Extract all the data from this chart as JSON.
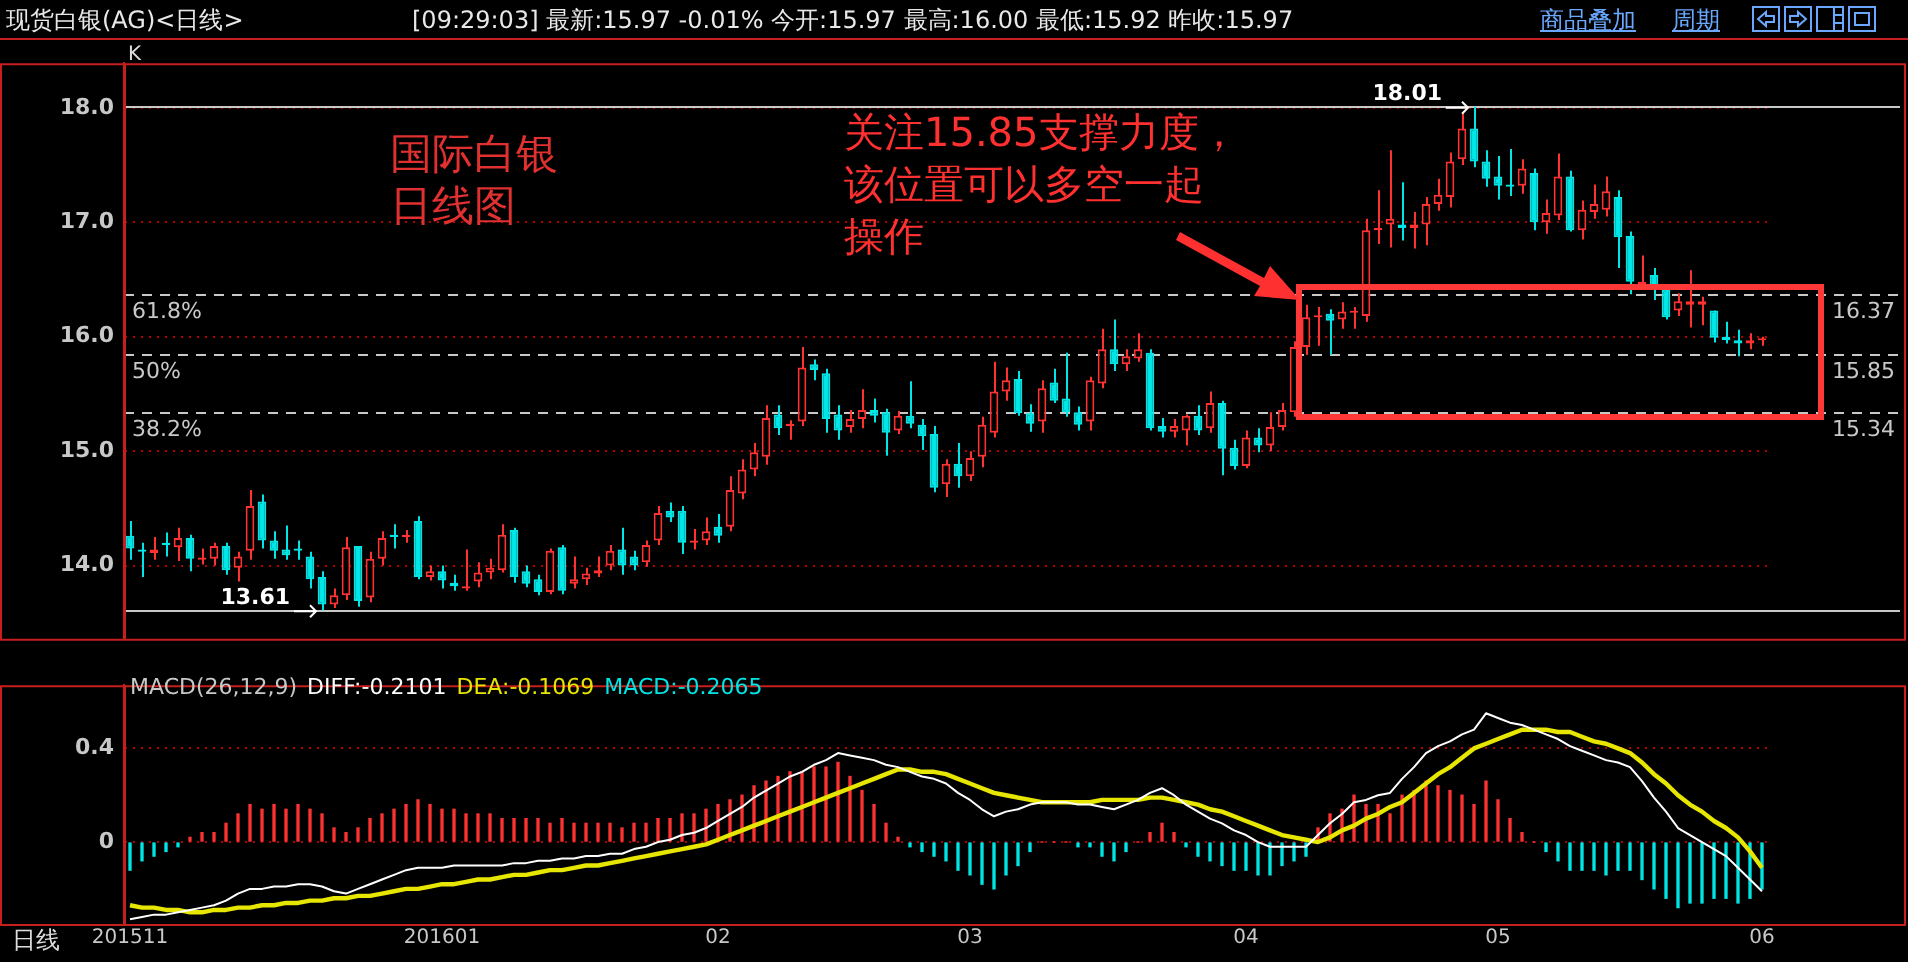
{
  "chart_data": [
    {
      "type": "candlestick",
      "title": "现货白银(AG)<日线>",
      "subtitle": "[09:29:03] 最新:15.97 -0.01% 今开:15.97 最高:16.00 最低:15.92 昨收:15.97",
      "categories": [
        "201511",
        null,
        null,
        null,
        null,
        null,
        null,
        null,
        null,
        null,
        null,
        null,
        null,
        null,
        null,
        null,
        null,
        null,
        null,
        null,
        null,
        null,
        null,
        null,
        null,
        null,
        "201601",
        null,
        null,
        null,
        null,
        null,
        null,
        null,
        null,
        null,
        null,
        null,
        null,
        null,
        null,
        null,
        null,
        null,
        null,
        null,
        null,
        null,
        null,
        "02",
        null,
        null,
        null,
        null,
        null,
        null,
        null,
        null,
        null,
        null,
        null,
        null,
        null,
        null,
        null,
        null,
        null,
        null,
        null,
        null,
        "03",
        null,
        null,
        null,
        null,
        null,
        null,
        null,
        null,
        null,
        null,
        null,
        null,
        null,
        null,
        null,
        null,
        null,
        null,
        null,
        null,
        null,
        null,
        "04",
        null,
        null,
        null,
        null,
        null,
        null,
        null,
        null,
        null,
        null,
        null,
        null,
        null,
        null,
        null,
        null,
        null,
        null,
        null,
        null,
        "05",
        null,
        null,
        null,
        null,
        null,
        null,
        null,
        null,
        null,
        null,
        null,
        null,
        null,
        null,
        null,
        null,
        null,
        null,
        null,
        null,
        null,
        "06"
      ],
      "ohlc": [
        [
          14.26,
          14.39,
          14.05,
          14.15
        ],
        [
          14.14,
          14.2,
          13.9,
          14.12
        ],
        [
          14.11,
          14.25,
          14.05,
          14.14
        ],
        [
          14.2,
          14.29,
          14.08,
          14.18
        ],
        [
          14.16,
          14.33,
          14.04,
          14.24
        ],
        [
          14.24,
          14.27,
          13.95,
          14.06
        ],
        [
          14.05,
          14.15,
          14.01,
          14.07
        ],
        [
          14.06,
          14.2,
          14.0,
          14.17
        ],
        [
          14.17,
          14.2,
          13.92,
          13.96
        ],
        [
          13.98,
          14.12,
          13.86,
          14.08
        ],
        [
          14.13,
          14.66,
          14.05,
          14.52
        ],
        [
          14.56,
          14.62,
          14.15,
          14.22
        ],
        [
          14.22,
          14.3,
          14.06,
          14.13
        ],
        [
          14.14,
          14.35,
          14.05,
          14.09
        ],
        [
          14.15,
          14.22,
          14.05,
          14.13
        ],
        [
          14.08,
          14.12,
          13.8,
          13.88
        ],
        [
          13.9,
          13.95,
          13.61,
          13.66
        ],
        [
          13.66,
          13.8,
          13.63,
          13.74
        ],
        [
          13.74,
          14.25,
          13.7,
          14.16
        ],
        [
          14.17,
          14.17,
          13.64,
          13.69
        ],
        [
          13.72,
          14.12,
          13.68,
          14.06
        ],
        [
          14.06,
          14.3,
          14.0,
          14.24
        ],
        [
          14.27,
          14.36,
          14.15,
          14.25
        ],
        [
          14.25,
          14.31,
          14.2,
          14.27
        ],
        [
          14.39,
          14.43,
          13.88,
          13.9
        ],
        [
          13.9,
          14.0,
          13.87,
          13.95
        ],
        [
          13.95,
          14.0,
          13.8,
          13.87
        ],
        [
          13.85,
          13.92,
          13.78,
          13.82
        ],
        [
          13.8,
          14.14,
          13.78,
          13.82
        ],
        [
          13.86,
          14.03,
          13.81,
          13.94
        ],
        [
          13.94,
          14.06,
          13.88,
          13.98
        ],
        [
          13.96,
          14.36,
          13.94,
          14.27
        ],
        [
          14.31,
          14.33,
          13.85,
          13.9
        ],
        [
          13.95,
          14.0,
          13.81,
          13.84
        ],
        [
          13.88,
          13.92,
          13.74,
          13.77
        ],
        [
          13.77,
          14.15,
          13.75,
          14.13
        ],
        [
          14.16,
          14.18,
          13.75,
          13.78
        ],
        [
          13.84,
          14.08,
          13.8,
          13.88
        ],
        [
          13.88,
          13.98,
          13.83,
          13.93
        ],
        [
          13.93,
          14.08,
          13.9,
          13.96
        ],
        [
          14.0,
          14.18,
          13.96,
          14.13
        ],
        [
          14.14,
          14.33,
          13.92,
          14.0
        ],
        [
          14.08,
          14.13,
          13.96,
          14.0
        ],
        [
          14.03,
          14.22,
          13.99,
          14.18
        ],
        [
          14.22,
          14.52,
          14.18,
          14.46
        ],
        [
          14.48,
          14.55,
          14.38,
          14.42
        ],
        [
          14.48,
          14.52,
          14.1,
          14.2
        ],
        [
          14.2,
          14.32,
          14.14,
          14.22
        ],
        [
          14.22,
          14.42,
          14.18,
          14.3
        ],
        [
          14.34,
          14.45,
          14.2,
          14.26
        ],
        [
          14.34,
          14.78,
          14.3,
          14.66
        ],
        [
          14.63,
          14.93,
          14.58,
          14.84
        ],
        [
          14.84,
          15.07,
          14.78,
          14.99
        ],
        [
          14.95,
          15.4,
          14.88,
          15.29
        ],
        [
          15.32,
          15.4,
          15.14,
          15.2
        ],
        [
          15.22,
          15.27,
          15.1,
          15.24
        ],
        [
          15.26,
          15.91,
          15.22,
          15.73
        ],
        [
          15.76,
          15.8,
          15.62,
          15.71
        ],
        [
          15.68,
          15.72,
          15.16,
          15.28
        ],
        [
          15.32,
          15.4,
          15.1,
          15.18
        ],
        [
          15.21,
          15.36,
          15.16,
          15.28
        ],
        [
          15.28,
          15.54,
          15.2,
          15.36
        ],
        [
          15.36,
          15.46,
          15.25,
          15.31
        ],
        [
          15.34,
          15.37,
          14.96,
          15.16
        ],
        [
          15.18,
          15.35,
          15.15,
          15.31
        ],
        [
          15.31,
          15.61,
          15.2,
          15.24
        ],
        [
          15.23,
          15.28,
          15.01,
          15.13
        ],
        [
          15.15,
          15.22,
          14.64,
          14.68
        ],
        [
          14.71,
          14.93,
          14.6,
          14.89
        ],
        [
          14.89,
          15.07,
          14.68,
          14.78
        ],
        [
          14.78,
          15.0,
          14.74,
          14.94
        ],
        [
          14.95,
          15.3,
          14.86,
          15.23
        ],
        [
          15.16,
          15.78,
          15.12,
          15.52
        ],
        [
          15.52,
          15.73,
          15.44,
          15.62
        ],
        [
          15.63,
          15.7,
          15.31,
          15.33
        ],
        [
          15.33,
          15.41,
          15.17,
          15.24
        ],
        [
          15.26,
          15.62,
          15.16,
          15.55
        ],
        [
          15.6,
          15.72,
          15.42,
          15.44
        ],
        [
          15.46,
          15.86,
          15.3,
          15.34
        ],
        [
          15.34,
          15.39,
          15.18,
          15.23
        ],
        [
          15.26,
          15.65,
          15.18,
          15.62
        ],
        [
          15.59,
          16.07,
          15.55,
          15.89
        ],
        [
          15.89,
          16.15,
          15.7,
          15.76
        ],
        [
          15.76,
          15.89,
          15.7,
          15.83
        ],
        [
          15.81,
          16.03,
          15.78,
          15.89
        ],
        [
          15.86,
          15.89,
          15.18,
          15.2
        ],
        [
          15.22,
          15.29,
          15.12,
          15.17
        ],
        [
          15.17,
          15.28,
          15.12,
          15.22
        ],
        [
          15.18,
          15.32,
          15.05,
          15.31
        ],
        [
          15.31,
          15.4,
          15.14,
          15.18
        ],
        [
          15.2,
          15.52,
          15.16,
          15.42
        ],
        [
          15.42,
          15.44,
          14.79,
          15.02
        ],
        [
          15.03,
          15.1,
          14.84,
          14.87
        ],
        [
          14.87,
          15.18,
          14.85,
          15.12
        ],
        [
          15.12,
          15.2,
          14.99,
          15.05
        ],
        [
          15.05,
          15.34,
          15.0,
          15.21
        ],
        [
          15.21,
          15.42,
          15.18,
          15.36
        ],
        [
          15.34,
          15.96,
          15.3,
          15.91
        ],
        [
          15.91,
          16.28,
          15.84,
          16.17
        ],
        [
          16.17,
          16.26,
          15.92,
          16.18
        ],
        [
          16.2,
          16.24,
          15.84,
          16.14
        ],
        [
          16.15,
          16.3,
          16.07,
          16.22
        ],
        [
          16.21,
          16.26,
          16.07,
          16.22
        ],
        [
          16.18,
          17.03,
          16.13,
          16.93
        ],
        [
          16.93,
          17.28,
          16.81,
          16.95
        ],
        [
          16.98,
          17.63,
          16.78,
          17.03
        ],
        [
          16.98,
          17.35,
          16.84,
          16.95
        ],
        [
          16.95,
          17.09,
          16.77,
          16.98
        ],
        [
          16.98,
          17.22,
          16.8,
          17.16
        ],
        [
          17.16,
          17.38,
          17.1,
          17.24
        ],
        [
          17.22,
          17.61,
          17.13,
          17.53
        ],
        [
          17.55,
          17.95,
          17.5,
          17.82
        ],
        [
          17.82,
          18.01,
          17.48,
          17.53
        ],
        [
          17.53,
          17.63,
          17.31,
          17.38
        ],
        [
          17.4,
          17.58,
          17.2,
          17.32
        ],
        [
          17.33,
          17.64,
          17.23,
          17.31
        ],
        [
          17.32,
          17.55,
          17.25,
          17.47
        ],
        [
          17.43,
          17.47,
          16.93,
          17.0
        ],
        [
          17.0,
          17.2,
          16.9,
          17.08
        ],
        [
          17.06,
          17.6,
          17.02,
          17.4
        ],
        [
          17.4,
          17.45,
          16.92,
          16.93
        ],
        [
          16.93,
          17.19,
          16.85,
          17.11
        ],
        [
          17.09,
          17.33,
          17.03,
          17.16
        ],
        [
          17.11,
          17.4,
          17.05,
          17.27
        ],
        [
          17.22,
          17.28,
          16.6,
          16.87
        ],
        [
          16.88,
          16.92,
          16.37,
          16.48
        ],
        [
          16.46,
          16.71,
          16.41,
          16.48
        ],
        [
          16.54,
          16.6,
          16.32,
          16.41
        ],
        [
          16.41,
          16.45,
          16.15,
          16.17
        ],
        [
          16.23,
          16.38,
          16.18,
          16.31
        ],
        [
          16.28,
          16.58,
          16.08,
          16.31
        ],
        [
          16.28,
          16.35,
          16.1,
          16.31
        ],
        [
          16.23,
          16.23,
          15.95,
          15.99
        ],
        [
          16.0,
          16.13,
          15.94,
          15.97
        ],
        [
          15.97,
          16.06,
          15.83,
          15.94
        ],
        [
          15.94,
          16.03,
          15.89,
          15.97
        ],
        [
          15.97,
          16.0,
          15.92,
          15.97
        ]
      ],
      "ylim": [
        13.36,
        18.39
      ],
      "yticks": [
        {
          "value": 14,
          "label": "14.0"
        },
        {
          "value": 15,
          "label": "15.0"
        },
        {
          "value": 16,
          "label": "16.0"
        },
        {
          "value": 17,
          "label": "17.0"
        },
        {
          "value": 18,
          "label": "18.0"
        }
      ],
      "grid": "y",
      "tick_labels": "y",
      "ref_lines": [
        {
          "axis": "y",
          "value": 16.37,
          "label": "16.37",
          "color": "#c8c8c8",
          "line_style": "dashed"
        },
        {
          "axis": "y",
          "value": 15.85,
          "label": "15.85",
          "color": "#c8c8c8",
          "line_style": "dashed"
        },
        {
          "axis": "y",
          "value": 15.34,
          "label": "15.34",
          "color": "#c8c8c8",
          "line_style": "dashed"
        },
        {
          "axis": "y",
          "value": 18.01,
          "color": "#c8c8c8",
          "line_style": "solid"
        },
        {
          "axis": "y",
          "value": 13.61,
          "color": "#c8c8c8",
          "line_style": "solid"
        }
      ],
      "annotations": [
        "K",
        {
          "text": "18.01",
          "y": 18.01
        },
        {
          "text": "13.61",
          "y": 13.61
        },
        {
          "text": "61.8%",
          "y": 16.37
        },
        {
          "text": "50%",
          "y": 15.85
        },
        {
          "text": "38.2%",
          "y": 15.34
        },
        "国际白银日线图",
        "关注15.85支撑力度，该位置可以多空一起操作",
        "商品叠加",
        "周期"
      ]
    },
    {
      "type": "line",
      "title": "MACD(26,12,9)",
      "categories": [
        "201511",
        null,
        null,
        null,
        null,
        null,
        null,
        null,
        null,
        null,
        null,
        null,
        null,
        null,
        null,
        null,
        null,
        null,
        null,
        null,
        null,
        null,
        null,
        null,
        null,
        null,
        "201601",
        null,
        null,
        null,
        null,
        null,
        null,
        null,
        null,
        null,
        null,
        null,
        null,
        null,
        null,
        null,
        null,
        null,
        null,
        null,
        null,
        null,
        null,
        "02",
        null,
        null,
        null,
        null,
        null,
        null,
        null,
        null,
        null,
        null,
        null,
        null,
        null,
        null,
        null,
        null,
        null,
        null,
        null,
        null,
        "03",
        null,
        null,
        null,
        null,
        null,
        null,
        null,
        null,
        null,
        null,
        null,
        null,
        null,
        null,
        null,
        null,
        null,
        null,
        null,
        null,
        null,
        null,
        "04",
        null,
        null,
        null,
        null,
        null,
        null,
        null,
        null,
        null,
        null,
        null,
        null,
        null,
        null,
        null,
        null,
        null,
        null,
        null,
        null,
        "05",
        null,
        null,
        null,
        null,
        null,
        null,
        null,
        null,
        null,
        null,
        null,
        null,
        null,
        null,
        null,
        null,
        null,
        null,
        null,
        null,
        null,
        "06"
      ],
      "series": [
        {
          "name": "DIFF:-0.2101",
          "color": "#ffffff",
          "values": [
            -0.33,
            -0.32,
            -0.31,
            -0.31,
            -0.3,
            -0.29,
            -0.28,
            -0.27,
            -0.25,
            -0.22,
            -0.2,
            -0.2,
            -0.19,
            -0.19,
            -0.18,
            -0.18,
            -0.19,
            -0.21,
            -0.22,
            -0.2,
            -0.18,
            -0.16,
            -0.14,
            -0.12,
            -0.11,
            -0.11,
            -0.11,
            -0.1,
            -0.1,
            -0.1,
            -0.1,
            -0.1,
            -0.09,
            -0.09,
            -0.08,
            -0.08,
            -0.07,
            -0.07,
            -0.06,
            -0.06,
            -0.05,
            -0.05,
            -0.03,
            -0.02,
            0.0,
            0.01,
            0.03,
            0.04,
            0.06,
            0.09,
            0.12,
            0.15,
            0.19,
            0.22,
            0.25,
            0.28,
            0.3,
            0.33,
            0.35,
            0.38,
            0.37,
            0.36,
            0.35,
            0.33,
            0.32,
            0.3,
            0.28,
            0.27,
            0.25,
            0.21,
            0.18,
            0.14,
            0.11,
            0.13,
            0.14,
            0.16,
            0.17,
            0.17,
            0.17,
            0.16,
            0.16,
            0.15,
            0.14,
            0.16,
            0.18,
            0.21,
            0.23,
            0.2,
            0.16,
            0.13,
            0.1,
            0.08,
            0.05,
            0.03,
            0.0,
            -0.02,
            -0.02,
            -0.02,
            -0.02,
            0.03,
            0.08,
            0.12,
            0.17,
            0.18,
            0.2,
            0.21,
            0.27,
            0.32,
            0.38,
            0.41,
            0.43,
            0.46,
            0.48,
            0.55,
            0.53,
            0.51,
            0.5,
            0.48,
            0.46,
            0.44,
            0.41,
            0.39,
            0.37,
            0.35,
            0.34,
            0.32,
            0.26,
            0.19,
            0.13,
            0.06,
            0.03,
            0.0,
            -0.03,
            -0.06,
            -0.11,
            -0.16,
            -0.21
          ]
        },
        {
          "name": "DEA:-0.1069",
          "color": "#e6e600",
          "values": [
            -0.27,
            -0.28,
            -0.28,
            -0.29,
            -0.29,
            -0.3,
            -0.3,
            -0.29,
            -0.29,
            -0.28,
            -0.28,
            -0.27,
            -0.27,
            -0.26,
            -0.26,
            -0.25,
            -0.25,
            -0.24,
            -0.24,
            -0.23,
            -0.23,
            -0.22,
            -0.21,
            -0.2,
            -0.2,
            -0.19,
            -0.18,
            -0.18,
            -0.17,
            -0.16,
            -0.16,
            -0.15,
            -0.14,
            -0.14,
            -0.13,
            -0.12,
            -0.12,
            -0.11,
            -0.1,
            -0.1,
            -0.09,
            -0.08,
            -0.07,
            -0.06,
            -0.05,
            -0.04,
            -0.03,
            -0.02,
            -0.01,
            0.01,
            0.03,
            0.05,
            0.07,
            0.09,
            0.11,
            0.13,
            0.15,
            0.17,
            0.19,
            0.21,
            0.23,
            0.25,
            0.27,
            0.29,
            0.31,
            0.31,
            0.3,
            0.3,
            0.29,
            0.27,
            0.25,
            0.23,
            0.21,
            0.2,
            0.19,
            0.18,
            0.17,
            0.17,
            0.17,
            0.17,
            0.17,
            0.18,
            0.18,
            0.18,
            0.18,
            0.19,
            0.19,
            0.18,
            0.17,
            0.16,
            0.14,
            0.13,
            0.11,
            0.09,
            0.07,
            0.05,
            0.03,
            0.02,
            0.01,
            0.0,
            0.02,
            0.05,
            0.07,
            0.1,
            0.12,
            0.15,
            0.17,
            0.21,
            0.25,
            0.29,
            0.32,
            0.36,
            0.4,
            0.42,
            0.44,
            0.46,
            0.48,
            0.48,
            0.48,
            0.47,
            0.47,
            0.45,
            0.43,
            0.42,
            0.4,
            0.38,
            0.34,
            0.29,
            0.25,
            0.2,
            0.16,
            0.13,
            0.09,
            0.06,
            0.02,
            -0.04,
            -0.11
          ]
        },
        {
          "name": "MACD:-0.2065",
          "type": "bar",
          "values": [
            -0.12,
            -0.08,
            -0.06,
            -0.04,
            -0.02,
            0.02,
            0.04,
            0.04,
            0.08,
            0.12,
            0.16,
            0.14,
            0.16,
            0.14,
            0.16,
            0.14,
            0.12,
            0.06,
            0.04,
            0.06,
            0.1,
            0.12,
            0.14,
            0.16,
            0.18,
            0.16,
            0.14,
            0.14,
            0.12,
            0.12,
            0.12,
            0.1,
            0.1,
            0.1,
            0.1,
            0.08,
            0.1,
            0.08,
            0.08,
            0.08,
            0.08,
            0.06,
            0.08,
            0.08,
            0.1,
            0.1,
            0.12,
            0.12,
            0.14,
            0.16,
            0.18,
            0.2,
            0.24,
            0.26,
            0.28,
            0.3,
            0.3,
            0.32,
            0.32,
            0.34,
            0.28,
            0.22,
            0.16,
            0.08,
            0.02,
            -0.02,
            -0.04,
            -0.06,
            -0.08,
            -0.12,
            -0.14,
            -0.18,
            -0.2,
            -0.14,
            -0.1,
            -0.04,
            0,
            0,
            0,
            -0.02,
            -0.02,
            -0.06,
            -0.08,
            -0.04,
            0,
            0.04,
            0.08,
            0.04,
            -0.02,
            -0.06,
            -0.08,
            -0.1,
            -0.12,
            -0.12,
            -0.14,
            -0.14,
            -0.1,
            -0.08,
            -0.06,
            0.06,
            0.12,
            0.14,
            0.2,
            0.16,
            0.16,
            0.12,
            0.2,
            0.22,
            0.26,
            0.24,
            0.22,
            0.2,
            0.16,
            0.26,
            0.18,
            0.1,
            0.04,
            0,
            -0.04,
            -0.08,
            -0.12,
            -0.12,
            -0.12,
            -0.14,
            -0.12,
            -0.12,
            -0.16,
            -0.2,
            -0.24,
            -0.28,
            -0.26,
            -0.26,
            -0.24,
            -0.24,
            -0.26,
            -0.24,
            -0.2
          ],
          "colors": [
            "#00e5e5",
            "#00e5e5",
            "#00e5e5",
            "#00e5e5",
            "#00e5e5",
            "#ff3232",
            "#ff3232",
            "#ff3232",
            "#ff3232",
            "#ff3232",
            "#ff3232",
            "#ff3232",
            "#ff3232",
            "#ff3232",
            "#ff3232",
            "#ff3232",
            "#ff3232",
            "#ff3232",
            "#ff3232",
            "#ff3232",
            "#ff3232",
            "#ff3232",
            "#ff3232",
            "#ff3232",
            "#ff3232",
            "#ff3232",
            "#ff3232",
            "#ff3232",
            "#ff3232",
            "#ff3232",
            "#ff3232",
            "#ff3232",
            "#ff3232",
            "#ff3232",
            "#ff3232",
            "#ff3232",
            "#ff3232",
            "#ff3232",
            "#ff3232",
            "#ff3232",
            "#ff3232",
            "#ff3232",
            "#ff3232",
            "#ff3232",
            "#ff3232",
            "#ff3232",
            "#ff3232",
            "#ff3232",
            "#ff3232",
            "#ff3232",
            "#ff3232",
            "#ff3232",
            "#ff3232",
            "#ff3232",
            "#ff3232",
            "#ff3232",
            "#ff3232",
            "#ff3232",
            "#ff3232",
            "#ff3232",
            "#ff3232",
            "#ff3232",
            "#ff3232",
            "#ff3232",
            "#ff3232",
            "#00e5e5",
            "#00e5e5",
            "#00e5e5",
            "#00e5e5",
            "#00e5e5",
            "#00e5e5",
            "#00e5e5",
            "#00e5e5",
            "#00e5e5",
            "#00e5e5",
            "#00e5e5",
            "#ff3232",
            "#ff3232",
            "#ff3232",
            "#00e5e5",
            "#00e5e5",
            "#00e5e5",
            "#00e5e5",
            "#00e5e5",
            "#ff3232",
            "#ff3232",
            "#ff3232",
            "#ff3232",
            "#00e5e5",
            "#00e5e5",
            "#00e5e5",
            "#00e5e5",
            "#00e5e5",
            "#00e5e5",
            "#00e5e5",
            "#00e5e5",
            "#00e5e5",
            "#00e5e5",
            "#00e5e5",
            "#ff3232",
            "#ff3232",
            "#ff3232",
            "#ff3232",
            "#ff3232",
            "#ff3232",
            "#ff3232",
            "#ff3232",
            "#ff3232",
            "#ff3232",
            "#ff3232",
            "#ff3232",
            "#ff3232",
            "#ff3232",
            "#ff3232",
            "#ff3232",
            "#ff3232",
            "#ff3232",
            "#ff3232",
            "#00e5e5",
            "#00e5e5",
            "#00e5e5",
            "#00e5e5",
            "#00e5e5",
            "#00e5e5",
            "#00e5e5",
            "#00e5e5",
            "#00e5e5",
            "#00e5e5",
            "#00e5e5",
            "#00e5e5",
            "#00e5e5",
            "#00e5e5",
            "#00e5e5",
            "#00e5e5",
            "#00e5e5",
            "#00e5e5",
            "#00e5e5"
          ]
        }
      ],
      "ylim": [
        -0.35,
        0.67
      ],
      "yticks": [
        0,
        0.4
      ],
      "grid": "y",
      "legend": "top left",
      "annotations": [
        "日线"
      ]
    }
  ]
}
